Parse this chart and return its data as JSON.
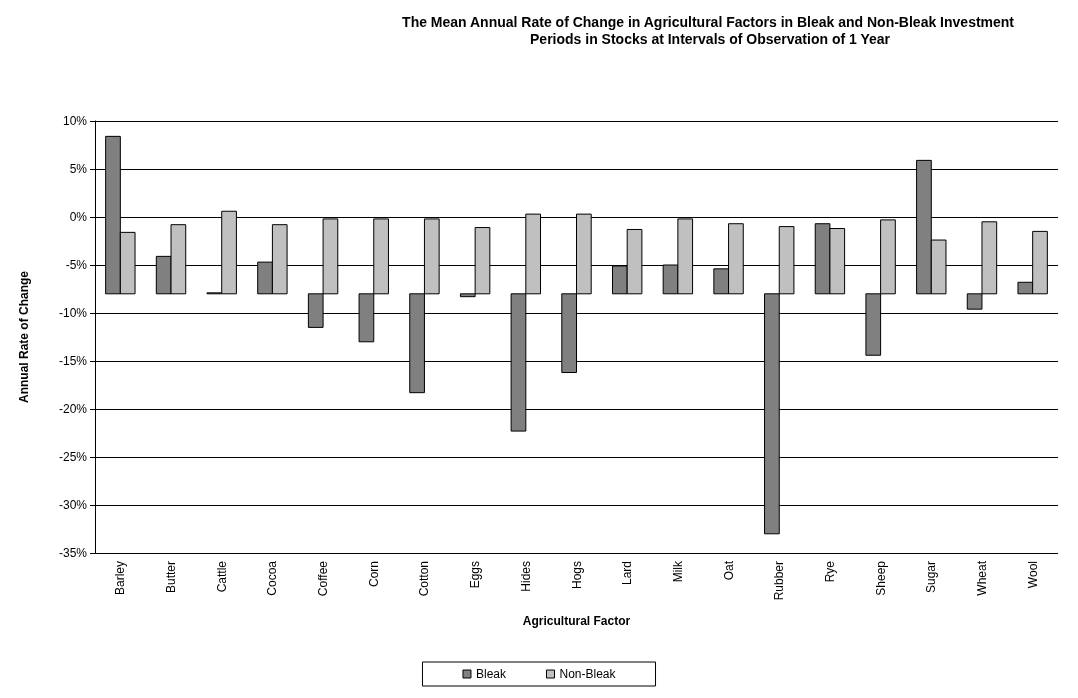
{
  "chart_data": {
    "type": "bar",
    "title": "The Mean Annual Rate of Change in Agricultural Factors in Bleak and Non-Bleak Investment Periods in Stocks at Intervals of Observation of 1 Year",
    "xlabel": "Agricultural Factor",
    "ylabel": "Annual Rate of Change",
    "categories": [
      "Barley",
      "Butter",
      "Cattle",
      "Cocoa",
      "Coffee",
      "Corn",
      "Cotton",
      "Eggs",
      "Hides",
      "Hogs",
      "Lard",
      "Milk",
      "Oat",
      "Rubber",
      "Rye",
      "Sheep",
      "Sugar",
      "Wheat",
      "Wool"
    ],
    "series": [
      {
        "name": "Bleak",
        "color": "#808080",
        "base": [
          -8,
          -8,
          -8,
          -8,
          -8,
          -8,
          -8,
          -8,
          -8,
          -8,
          -8,
          -8,
          -8,
          -8,
          -8,
          -8,
          -8,
          -8,
          -8
        ],
        "values": [
          16.4,
          3.9,
          0.1,
          3.3,
          -3.5,
          -5,
          -10.3,
          -0.3,
          -14.3,
          -8.2,
          2.9,
          3,
          2.6,
          -25,
          7.3,
          -6.4,
          13.9,
          -1.6,
          1.2
        ]
      },
      {
        "name": "Non-Bleak",
        "color": "#c0c0c0",
        "base": [
          -8,
          -8,
          -8,
          -8,
          -8,
          -8,
          -8,
          -8,
          -8,
          -8,
          -8,
          -8,
          -8,
          -8,
          -8,
          -8,
          -8,
          -8,
          -8
        ],
        "values": [
          6.4,
          7.2,
          8.6,
          7.2,
          7.8,
          7.8,
          7.8,
          6.9,
          8.3,
          8.3,
          6.7,
          7.8,
          7.3,
          7,
          6.8,
          7.7,
          5.6,
          7.5,
          6.5
        ]
      }
    ],
    "ylim": [
      -35,
      10
    ],
    "yticks": [
      {
        "value": 10,
        "label": "10%"
      },
      {
        "value": 5,
        "label": "5%"
      },
      {
        "value": 0,
        "label": "0%"
      },
      {
        "value": -5,
        "label": "-5%"
      },
      {
        "value": -10,
        "label": "-10%"
      },
      {
        "value": -15,
        "label": "-15%"
      },
      {
        "value": -20,
        "label": "-20%"
      },
      {
        "value": -25,
        "label": "-25%"
      },
      {
        "value": -30,
        "label": "-30%"
      },
      {
        "value": -35,
        "label": "-35%"
      }
    ],
    "grid": "y",
    "legend": "bottom"
  }
}
